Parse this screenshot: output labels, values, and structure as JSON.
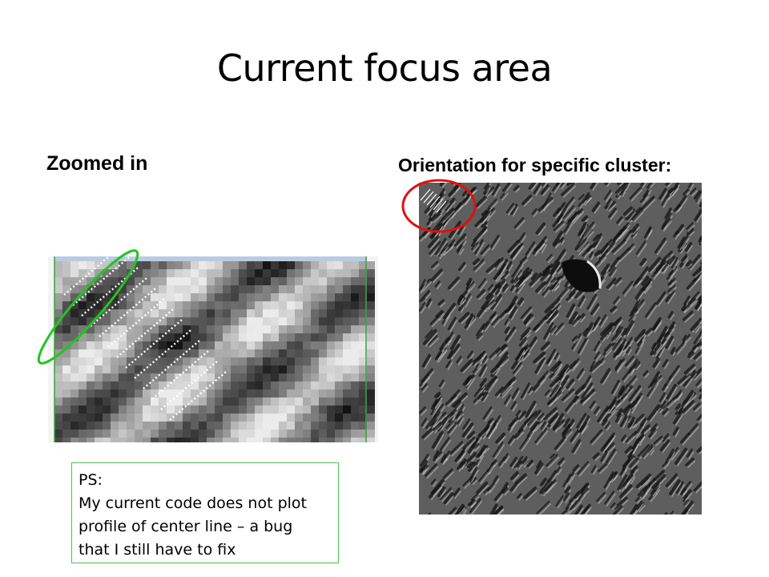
{
  "slide": {
    "title": "Current focus area",
    "left_heading": "Zoomed in",
    "right_heading": "Orientation for specific cluster:",
    "note": {
      "lines": [
        "PS:",
        "My current code does not plot",
        "profile of center line – a bug",
        "that I still have to fix"
      ]
    }
  },
  "colors": {
    "highlight_ellipse": "#22c422",
    "cluster_circle": "#e01010",
    "note_border": "#4fc24f"
  }
}
